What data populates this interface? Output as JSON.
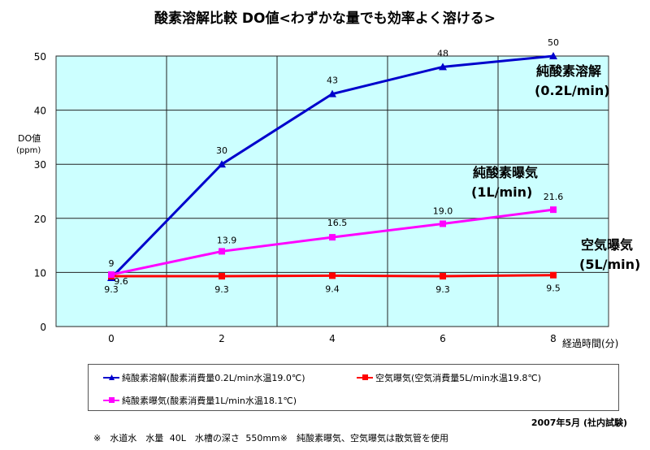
{
  "chart_data": {
    "type": "line",
    "title": "酸素溶解比較 DO値<わずかな量でも効率よく溶ける>",
    "ylabel": "DO値",
    "ylabel_unit": "(ppm)",
    "xlabel": "経過時間(分)",
    "categories": [
      "0",
      "2",
      "4",
      "6",
      "8"
    ],
    "ylim": [
      0,
      50
    ],
    "yticks": [
      "0",
      "10",
      "20",
      "30",
      "40",
      "50"
    ],
    "grid": true,
    "plot_background": "#ccffff",
    "series": [
      {
        "name": "純酸素溶解(酸素消費量0.2L/min水温19.0℃)",
        "color": "#0000cc",
        "marker": "triangle",
        "values": [
          9,
          30,
          43,
          48,
          50
        ],
        "labels": [
          "9",
          "30",
          "43",
          "48",
          "50"
        ],
        "annotation": [
          "純酸素溶解",
          "(0.2L/min)"
        ]
      },
      {
        "name": "空気曝気(空気消費量5L/min水温19.8℃)",
        "color": "#ff0000",
        "marker": "square",
        "values": [
          9.3,
          9.3,
          9.4,
          9.3,
          9.5
        ],
        "labels": [
          "9.3",
          "9.3",
          "9.4",
          "9.3",
          "9.5"
        ],
        "annotation": [
          "空気曝気",
          "(5L/min)"
        ]
      },
      {
        "name": "純酸素曝気(酸素消費量1L/min水温18.1℃)",
        "color": "#ff00ff",
        "marker": "square",
        "values": [
          9.6,
          13.9,
          16.5,
          19.0,
          21.6
        ],
        "labels": [
          "9.6",
          "13.9",
          "16.5",
          "19.0",
          "21.6"
        ],
        "annotation": [
          "純酸素曝気",
          "(1L/min)"
        ]
      }
    ]
  },
  "footer": {
    "date": "2007年5月 (社内試験)",
    "note": "※　水道水　水量 40L　水槽の深さ 550mm※　純酸素曝気、空気曝気は散気管を使用"
  }
}
